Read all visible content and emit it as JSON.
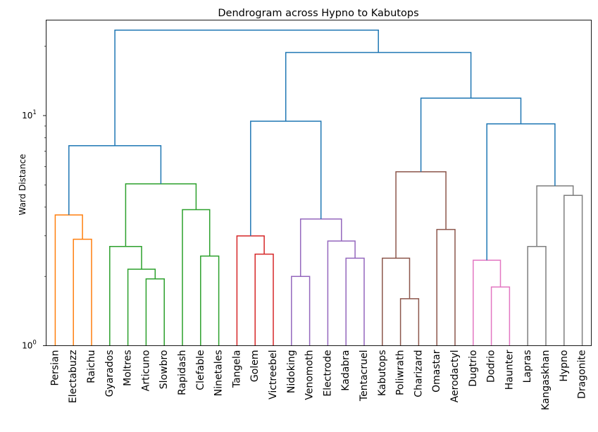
{
  "chart_data": {
    "type": "dendrogram",
    "title": "Dendrogram across Hypno to Kabutops",
    "xlabel": "",
    "ylabel": "Ward Distance",
    "yscale": "log",
    "ylim": [
      1,
      26
    ],
    "yticks": [
      {
        "value": 1,
        "label": "10",
        "exp": "0"
      },
      {
        "value": 10,
        "label": "10",
        "exp": "1"
      }
    ],
    "leaves": [
      "Persian",
      "Electabuzz",
      "Raichu",
      "Gyarados",
      "Moltres",
      "Articuno",
      "Slowbro",
      "Rapidash",
      "Clefable",
      "Ninetales",
      "Tangela",
      "Golem",
      "Victreebel",
      "Nidoking",
      "Venomoth",
      "Electrode",
      "Kadabra",
      "Tentacruel",
      "Kabutops",
      "Poliwrath",
      "Charizard",
      "Omastar",
      "Aerodactyl",
      "Dugtrio",
      "Dodrio",
      "Haunter",
      "Lapras",
      "Kangaskhan",
      "Hypno",
      "Dragonite"
    ],
    "merges": [
      {
        "left": "Electabuzz",
        "right": "Raichu",
        "height": 2.9,
        "color": "#ff7f0e"
      },
      {
        "left": "Persian",
        "right": "Electabuzz+Raichu",
        "height": 3.7,
        "color": "#ff7f0e"
      },
      {
        "left": "Articuno",
        "right": "Slowbro",
        "height": 1.95,
        "color": "#2ca02c"
      },
      {
        "left": "Moltres",
        "right": "Articuno+Slowbro",
        "height": 2.15,
        "color": "#2ca02c"
      },
      {
        "left": "Gyarados",
        "right": "Moltres+Articuno+Slowbro",
        "height": 2.7,
        "color": "#2ca02c"
      },
      {
        "left": "Clefable",
        "right": "Ninetales",
        "height": 2.45,
        "color": "#2ca02c"
      },
      {
        "left": "Rapidash",
        "right": "Clefable+Ninetales",
        "height": 3.9,
        "color": "#2ca02c"
      },
      {
        "left": "Gyarados group",
        "right": "Rapidash group",
        "height": 5.05,
        "color": "#2ca02c"
      },
      {
        "left": "Persian group",
        "right": "Gyarados-Ninetales group",
        "height": 7.4,
        "color": "#1f77b4"
      },
      {
        "left": "Golem",
        "right": "Victreebel",
        "height": 2.5,
        "color": "#d62728"
      },
      {
        "left": "Tangela",
        "right": "Golem+Victreebel",
        "height": 3.0,
        "color": "#d62728"
      },
      {
        "left": "Nidoking",
        "right": "Venomoth",
        "height": 2.0,
        "color": "#9467bd"
      },
      {
        "left": "Kadabra",
        "right": "Tentacruel",
        "height": 2.4,
        "color": "#9467bd"
      },
      {
        "left": "Electrode",
        "right": "Kadabra+Tentacruel",
        "height": 2.85,
        "color": "#9467bd"
      },
      {
        "left": "Nidoking+Venomoth",
        "right": "Electrode group",
        "height": 3.55,
        "color": "#9467bd"
      },
      {
        "left": "Tangela group",
        "right": "Nidoking group",
        "height": 9.45,
        "color": "#1f77b4"
      },
      {
        "left": "Poliwrath",
        "right": "Charizard",
        "height": 1.6,
        "color": "#8c564b"
      },
      {
        "left": "Kabutops",
        "right": "Poliwrath+Charizard",
        "height": 2.4,
        "color": "#8c564b"
      },
      {
        "left": "Omastar",
        "right": "Aerodactyl",
        "height": 3.2,
        "color": "#8c564b"
      },
      {
        "left": "Kabutops group",
        "right": "Omastar+Aerodactyl",
        "height": 5.7,
        "color": "#8c564b"
      },
      {
        "left": "Dodrio",
        "right": "Haunter",
        "height": 1.8,
        "color": "#e377c2"
      },
      {
        "left": "Dugtrio",
        "right": "Dodrio+Haunter",
        "height": 2.35,
        "color": "#e377c2"
      },
      {
        "left": "Lapras",
        "right": "Kangaskhan",
        "height": 2.7,
        "color": "#7f7f7f"
      },
      {
        "left": "Hypno",
        "right": "Dragonite",
        "height": 4.5,
        "color": "#7f7f7f"
      },
      {
        "left": "Lapras+Kangaskhan",
        "right": "Hypno+Dragonite",
        "height": 4.95,
        "color": "#7f7f7f"
      },
      {
        "left": "Dugtrio group",
        "right": "Lapras group",
        "height": 9.2,
        "color": "#1f77b4"
      },
      {
        "left": "Kabutops-Aerodactyl group",
        "right": "Dugtrio-Dragonite group",
        "height": 11.9,
        "color": "#1f77b4"
      },
      {
        "left": "Tangela-Tentacruel group",
        "right": "Kabutops-Dragonite group",
        "height": 18.8,
        "color": "#1f77b4"
      },
      {
        "left": "Persian-Ninetales group",
        "right": "Tangela-Dragonite group",
        "height": 23.5,
        "color": "#1f77b4"
      }
    ]
  }
}
